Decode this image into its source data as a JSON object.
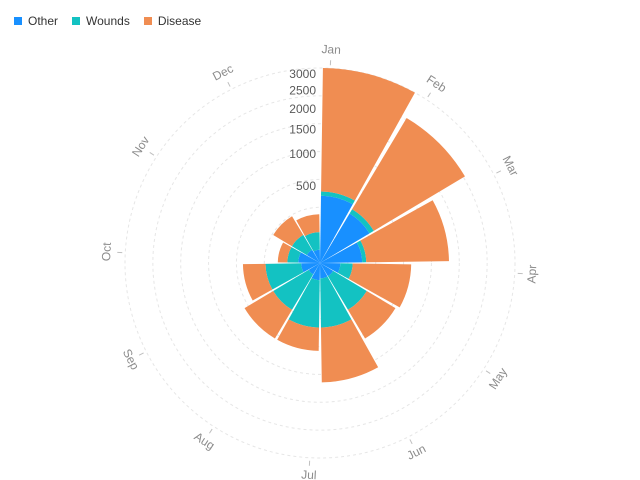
{
  "chart_data": {
    "type": "nightingale-rose",
    "categories": [
      "Jan",
      "Feb",
      "Mar",
      "Apr",
      "May",
      "Jun",
      "Jul",
      "Aug",
      "Sep",
      "Oct",
      "Nov",
      "Dec"
    ],
    "series": [
      {
        "name": "Other",
        "color": "#1890ff",
        "values": [
          380,
          280,
          150,
          35,
          20,
          20,
          25,
          15,
          30,
          40,
          20,
          15
        ]
      },
      {
        "name": "Wounds",
        "color": "#13c2c2",
        "values": [
          430,
          330,
          180,
          90,
          250,
          350,
          350,
          250,
          250,
          90,
          90,
          80
        ]
      },
      {
        "name": "Disease",
        "color": "#f08d52",
        "values": [
          3200,
          2400,
          1400,
          700,
          650,
          1200,
          650,
          650,
          500,
          150,
          250,
          200
        ]
      }
    ],
    "radial_ticks": [
      "500",
      "1000",
      "1500",
      "2000",
      "2500",
      "3000"
    ],
    "radial_tick_values": [
      500,
      1000,
      1500,
      2000,
      2500,
      3000
    ],
    "radial_scale": "sqrt",
    "rmax": 3200,
    "legend_position": "top-left",
    "grid": true
  }
}
